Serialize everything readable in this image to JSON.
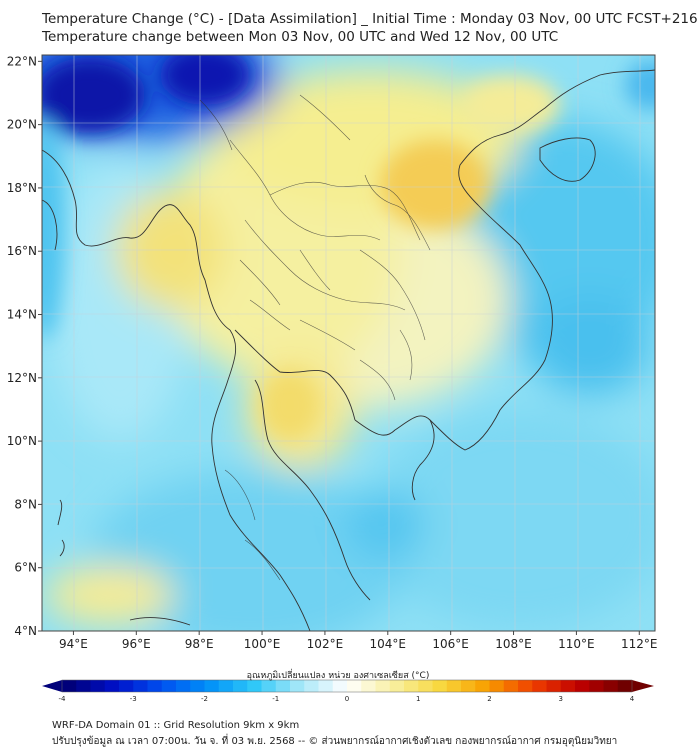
{
  "header": {
    "title_line1": "Temperature Change (°C) - [Data Assimilation] _ Initial Time : Monday 03 Nov, 00 UTC FCST+216",
    "title_line2": "Temperature change between Mon 03 Nov, 00 UTC and Wed 12 Nov, 00 UTC"
  },
  "map": {
    "lon_labels": [
      "94°E",
      "96°E",
      "98°E",
      "100°E",
      "102°E",
      "104°E",
      "106°E",
      "108°E",
      "110°E",
      "112°E"
    ],
    "lat_labels": [
      "22°N",
      "20°N",
      "18°N",
      "16°N",
      "14°N",
      "12°N",
      "10°N",
      "8°N",
      "6°N",
      "4°N"
    ],
    "lon_range": [
      93.0,
      112.5
    ],
    "lat_range": [
      4.0,
      22.2
    ],
    "field_features": [
      {
        "kind": "cooling",
        "lon": 95.5,
        "lat": 21.4,
        "value": -3.2
      },
      {
        "kind": "cooling",
        "lon": 99.0,
        "lat": 21.6,
        "value": -2.8
      },
      {
        "kind": "warming",
        "lon": 105.3,
        "lat": 17.8,
        "value": 1.6
      },
      {
        "kind": "warming",
        "lon": 101.0,
        "lat": 11.2,
        "value": 0.9
      },
      {
        "kind": "warming",
        "lon": 100.3,
        "lat": 19.8,
        "value": 0.8
      },
      {
        "kind": "warming",
        "lon": 96.8,
        "lat": 15.9,
        "value": 0.7
      },
      {
        "kind": "cooling",
        "lon": 109.5,
        "lat": 12.5,
        "value": -1.4
      },
      {
        "kind": "cooling",
        "lon": 104.5,
        "lat": 7.2,
        "value": -1.3
      },
      {
        "kind": "warming",
        "lon": 96.0,
        "lat": 5.2,
        "value": 0.5
      }
    ]
  },
  "colorbar": {
    "title": "อุณหภูมิเปลี่ยนแปลง หน่วย องศาเซลเซียส (°C)",
    "min": -4,
    "max": 4,
    "ticks": [
      "-4",
      "-3",
      "-2",
      "-1",
      "0",
      "1",
      "2",
      "3",
      "4"
    ],
    "colors": [
      "#00007a",
      "#0010c8",
      "#0050f0",
      "#0090f8",
      "#30c8f8",
      "#a8e8f8",
      "#ffffff",
      "#f8f0a0",
      "#f8d840",
      "#f8a000",
      "#f04000",
      "#c00000",
      "#700000"
    ]
  },
  "footer": {
    "line1": "WRF-DA Domain 01 :: Grid Resolution 9km x 9km",
    "line2": "ปรับปรุงข้อมูล ณ เวลา 07:00น. วัน จ. ที่ 03 พ.ย. 2568 -- © ส่วนพยากรณ์อากาศเชิงตัวเลข กองพยากรณ์อากาศ กรมอุตุนิยมวิทยา"
  }
}
